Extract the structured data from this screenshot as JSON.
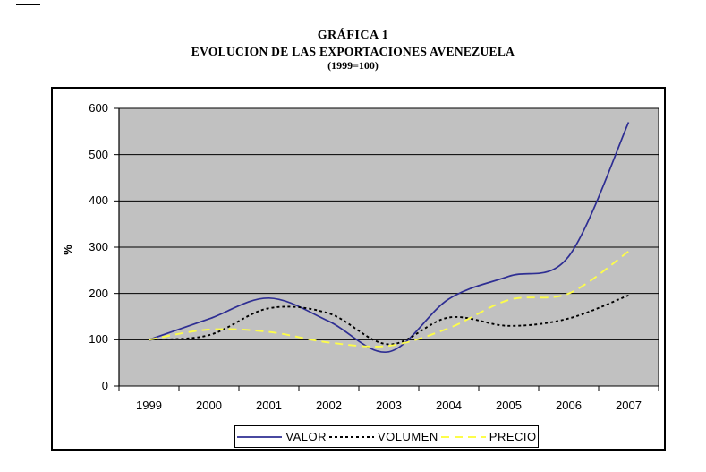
{
  "title": {
    "line1": "GRÁFICA 1",
    "line2": "EVOLUCION DE LAS EXPORTACIONES AVENEZUELA",
    "line3": "(1999=100)"
  },
  "chart_data": {
    "type": "line",
    "title": "GRÁFICA 1 - EVOLUCION DE LAS EXPORTACIONES AVENEZUELA (1999=100)",
    "xlabel": "",
    "ylabel": "%",
    "categories": [
      "1999",
      "2000",
      "2001",
      "2002",
      "2003",
      "2004",
      "2005",
      "2006",
      "2007"
    ],
    "yticks": [
      0,
      100,
      200,
      300,
      400,
      500,
      600
    ],
    "ylim": [
      0,
      600
    ],
    "grid": "horizontal",
    "legend_position": "bottom",
    "plot_bg": "#C1C1C1",
    "grid_color": "#000000",
    "series": [
      {
        "name": "VALOR",
        "style": "solid",
        "color": "#2E2E93",
        "width": 1.7,
        "values": [
          100,
          145,
          190,
          140,
          74,
          188,
          237,
          280,
          570
        ]
      },
      {
        "name": "VOLUMEN",
        "style": "dotted",
        "color": "#000000",
        "width": 1.9,
        "values": [
          100,
          110,
          168,
          157,
          90,
          148,
          130,
          146,
          196
        ]
      },
      {
        "name": "PRECIO",
        "style": "dashed",
        "color": "#FDFD4A",
        "width": 1.9,
        "values": [
          100,
          122,
          117,
          94,
          87,
          125,
          186,
          200,
          291
        ]
      }
    ]
  }
}
